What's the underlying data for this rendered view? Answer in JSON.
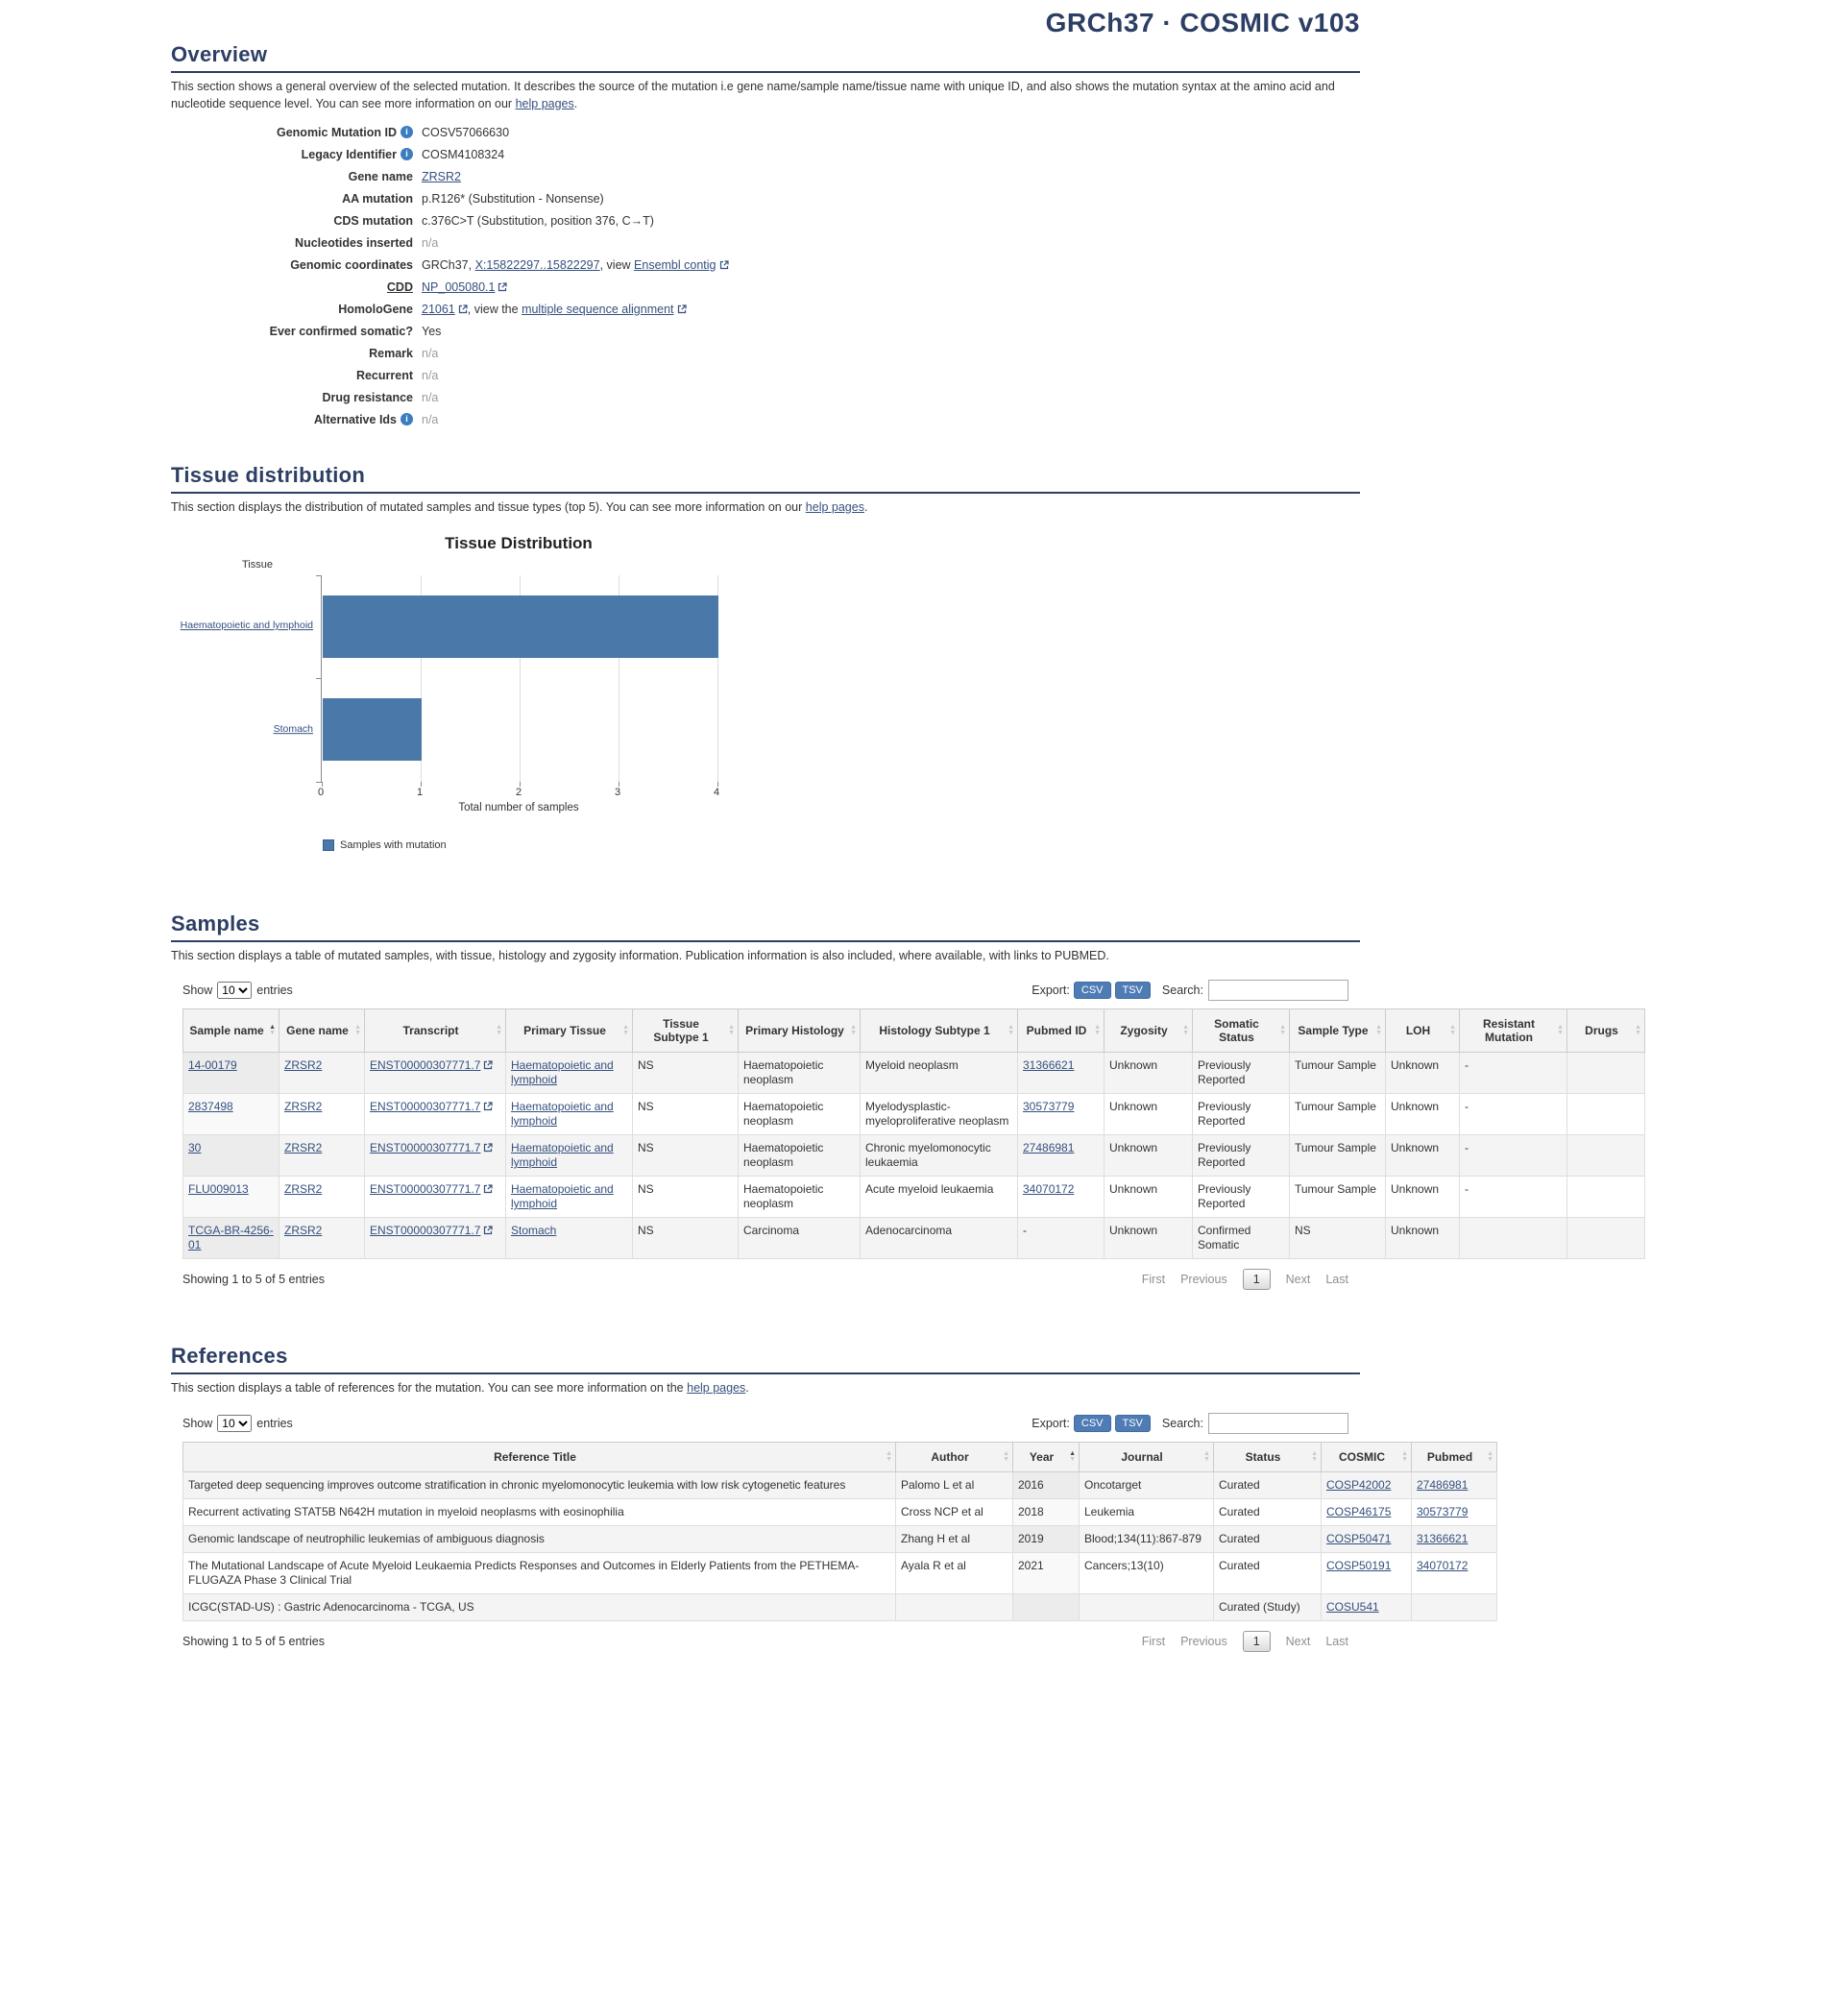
{
  "page": {
    "build_label": "GRCh37 · COSMIC v103"
  },
  "overview": {
    "title": "Overview",
    "description_before": "This section shows a general overview of the selected mutation. It describes the source of the mutation i.e gene name/sample name/tissue name with unique ID, and also shows the mutation syntax at the amino acid and nucleotide sequence level. You can see more information on our",
    "help_link": "help pages",
    "description_after": ".",
    "fields": {
      "genomic_mutation_id": {
        "label": "Genomic Mutation ID",
        "value": "COSV57066630"
      },
      "legacy_identifier": {
        "label": "Legacy Identifier",
        "value": "COSM4108324"
      },
      "gene_name": {
        "label": "Gene name",
        "value": "ZRSR2"
      },
      "aa_mutation": {
        "label": "AA mutation",
        "value": "p.R126* (Substitution - Nonsense)"
      },
      "cds_mutation": {
        "label": "CDS mutation",
        "value": "c.376C>T (Substitution, position 376, C→T)"
      },
      "nucleotides_inserted": {
        "label": "Nucleotides inserted",
        "value": "n/a"
      },
      "genomic_coordinates": {
        "label": "Genomic coordinates",
        "prefix": "GRCh37,",
        "link1": "X:15822297..15822297",
        "mid": ", view",
        "link2": "Ensembl contig"
      },
      "cdd": {
        "label": "CDD",
        "link": "NP_005080.1"
      },
      "homologene": {
        "label": "HomoloGene",
        "link1": "21061",
        "mid": ", view the",
        "link2": "multiple sequence alignment"
      },
      "ever_confirmed_somatic": {
        "label": "Ever confirmed somatic?",
        "value": "Yes"
      },
      "remark": {
        "label": "Remark",
        "value": "n/a"
      },
      "recurrent": {
        "label": "Recurrent",
        "value": "n/a"
      },
      "drug_resistance": {
        "label": "Drug resistance",
        "value": "n/a"
      },
      "alternative_ids": {
        "label": "Alternative Ids",
        "value": "n/a"
      }
    }
  },
  "tissue": {
    "title": "Tissue distribution",
    "description_before": "This section displays the distribution of mutated samples and tissue types (top 5). You can see more information on our",
    "help_link": "help pages",
    "description_after": "."
  },
  "chart_data": {
    "type": "bar",
    "orientation": "horizontal",
    "title": "Tissue Distribution",
    "ylabel": "Tissue",
    "xlabel": "Total number of samples",
    "categories": [
      "Haematopoietic and lymphoid",
      "Stomach"
    ],
    "values": [
      4,
      1
    ],
    "xlim": [
      0,
      4
    ],
    "xticks": [
      0,
      1,
      2,
      3,
      4
    ],
    "legend": [
      "Samples with mutation"
    ],
    "bar_color": "#4a78a8",
    "grid": true
  },
  "table_controls": {
    "show_label": "Show",
    "page_size": "10",
    "entries_label": "entries",
    "export_label": "Export:",
    "csv_label": "CSV",
    "tsv_label": "TSV",
    "search_label": "Search:",
    "first": "First",
    "previous": "Previous",
    "page": "1",
    "next": "Next",
    "last": "Last"
  },
  "samples": {
    "title": "Samples",
    "description": "This section displays a table of mutated samples, with tissue, histology and zygosity information. Publication information is also included, where available, with links to PUBMED.",
    "footer_text": "Showing 1 to 5 of 5 entries",
    "columns": [
      "Sample name",
      "Gene name",
      "Transcript",
      "Primary Tissue",
      "Tissue Subtype 1",
      "Primary Histology",
      "Histology Subtype 1",
      "Pubmed ID",
      "Zygosity",
      "Somatic Status",
      "Sample Type",
      "LOH",
      "Resistant Mutation",
      "Drugs"
    ],
    "rows": [
      [
        "14-00179",
        "ZRSR2",
        "ENST00000307771.7",
        "Haematopoietic and lymphoid",
        "NS",
        "Haematopoietic neoplasm",
        "Myeloid neoplasm",
        "31366621",
        "Unknown",
        "Previously Reported",
        "Tumour Sample",
        "Unknown",
        "-",
        ""
      ],
      [
        "2837498",
        "ZRSR2",
        "ENST00000307771.7",
        "Haematopoietic and lymphoid",
        "NS",
        "Haematopoietic neoplasm",
        "Myelodysplastic-myeloproliferative neoplasm",
        "30573779",
        "Unknown",
        "Previously Reported",
        "Tumour Sample",
        "Unknown",
        "-",
        ""
      ],
      [
        "30",
        "ZRSR2",
        "ENST00000307771.7",
        "Haematopoietic and lymphoid",
        "NS",
        "Haematopoietic neoplasm",
        "Chronic myelomonocytic leukaemia",
        "27486981",
        "Unknown",
        "Previously Reported",
        "Tumour Sample",
        "Unknown",
        "-",
        ""
      ],
      [
        "FLU009013",
        "ZRSR2",
        "ENST00000307771.7",
        "Haematopoietic and lymphoid",
        "NS",
        "Haematopoietic neoplasm",
        "Acute myeloid leukaemia",
        "34070172",
        "Unknown",
        "Previously Reported",
        "Tumour Sample",
        "Unknown",
        "-",
        ""
      ],
      [
        "TCGA-BR-4256-01",
        "ZRSR2",
        "ENST00000307771.7",
        "Stomach",
        "NS",
        "Carcinoma",
        "Adenocarcinoma",
        "-",
        "Unknown",
        "Confirmed Somatic",
        "NS",
        "Unknown",
        "",
        ""
      ]
    ]
  },
  "references": {
    "title": "References",
    "description_before": "This section displays a table of references for the mutation. You can see more information on the",
    "help_link": "help pages",
    "description_after": ".",
    "footer_text": "Showing 1 to 5 of 5 entries",
    "columns": [
      "Reference Title",
      "Author",
      "Year",
      "Journal",
      "Status",
      "COSMIC",
      "Pubmed"
    ],
    "rows": [
      [
        "Targeted deep sequencing improves outcome stratification in chronic myelomonocytic leukemia with low risk cytogenetic features",
        "Palomo L et al",
        "2016",
        "Oncotarget",
        "Curated",
        "COSP42002",
        "27486981"
      ],
      [
        "Recurrent activating STAT5B N642H mutation in myeloid neoplasms with eosinophilia",
        "Cross NCP et al",
        "2018",
        "Leukemia",
        "Curated",
        "COSP46175",
        "30573779"
      ],
      [
        "Genomic landscape of neutrophilic leukemias of ambiguous diagnosis",
        "Zhang H et al",
        "2019",
        "Blood;134(11):867-879",
        "Curated",
        "COSP50471",
        "31366621"
      ],
      [
        "The Mutational Landscape of Acute Myeloid Leukaemia Predicts Responses and Outcomes in Elderly Patients from the PETHEMA-FLUGAZA Phase 3 Clinical Trial",
        "Ayala R et al",
        "2021",
        "Cancers;13(10)",
        "Curated",
        "COSP50191",
        "34070172"
      ],
      [
        "ICGC(STAD-US) : Gastric Adenocarcinoma - TCGA, US",
        "",
        "",
        "",
        "Curated (Study)",
        "COSU541",
        ""
      ]
    ]
  }
}
